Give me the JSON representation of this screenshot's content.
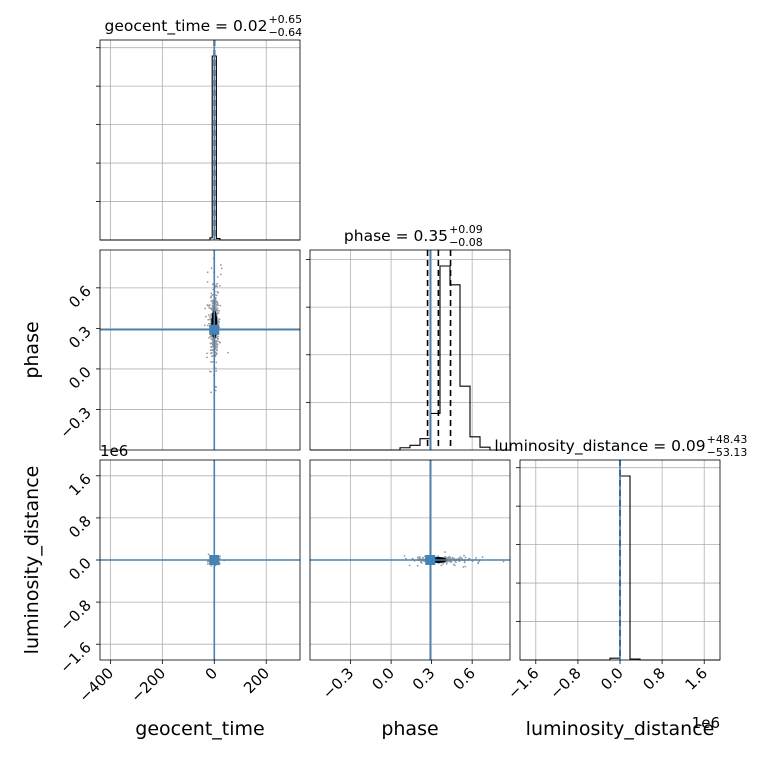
{
  "chart_data": {
    "type": "scatter",
    "subtype": "corner-plot",
    "parameters": [
      "geocent_time",
      "phase",
      "luminosity_distance"
    ],
    "truth_color": "#4682b4",
    "grid": true,
    "titles": [
      {
        "param": "geocent_time",
        "name": "geocent_time",
        "median": "0.02",
        "plus": "+0.65",
        "minus": "−0.64"
      },
      {
        "param": "phase",
        "name": "phase",
        "median": "0.35",
        "plus": "+0.09",
        "minus": "−0.08"
      },
      {
        "param": "luminosity_distance",
        "name": "luminosity_distance",
        "median": "0.09",
        "plus": "+48.43",
        "minus": "−53.13"
      }
    ],
    "axes": {
      "geocent_time": {
        "label": "geocent_time",
        "range": [
          -440,
          330
        ],
        "ticks": [
          -400,
          -200,
          0,
          200
        ],
        "tick_labels": [
          "−400",
          "−200",
          "0",
          "200"
        ],
        "truth": 0
      },
      "phase": {
        "label": "phase",
        "range": [
          -0.6,
          0.88
        ],
        "ticks": [
          -0.3,
          0.0,
          0.3,
          0.6
        ],
        "tick_labels": [
          "−0.3",
          "0.0",
          "0.3",
          "0.6"
        ],
        "truth": 0.29
      },
      "luminosity_distance": {
        "label": "luminosity_distance",
        "offset_label": "1e6",
        "range": [
          -1.9,
          1.9
        ],
        "ticks": [
          -1.6,
          -0.8,
          0.0,
          0.8,
          1.6
        ],
        "tick_labels": [
          "−1.6",
          "−0.8",
          "0.0",
          "0.8",
          "1.6"
        ],
        "truth": 0
      }
    },
    "y_axes": {
      "phase": {
        "range": [
          -0.6,
          0.88
        ],
        "ticks": [
          -0.3,
          0.0,
          0.3,
          0.6
        ],
        "tick_labels": [
          "−0.3",
          "0.0",
          "0.3",
          "0.6"
        ]
      },
      "luminosity_distance": {
        "offset_label": "1e6",
        "range": [
          -1.9,
          1.9
        ],
        "ticks": [
          -1.6,
          -0.8,
          0.0,
          0.8,
          1.6
        ],
        "tick_labels": [
          "−1.6",
          "−0.8",
          "0.0",
          "0.8",
          "1.6"
        ]
      }
    },
    "histograms": [
      {
        "param": "geocent_time",
        "bin_edges": [
          -440,
          -401.5,
          -363,
          -324.5,
          -286,
          -247.5,
          -209,
          -170.5,
          -132,
          -93.5,
          -55,
          -16.5,
          -8,
          0,
          8,
          22,
          60.5,
          99,
          137.5,
          176,
          214.5,
          253,
          291.5,
          330
        ],
        "counts": [
          0,
          0,
          0,
          0,
          0,
          0,
          0,
          0,
          0,
          0,
          0,
          0.012,
          1.0,
          1.0,
          0.008,
          0,
          0,
          0,
          0,
          0,
          0,
          0,
          0
        ],
        "quantiles": [
          -0.62,
          0.02,
          0.67
        ],
        "y_ticks": 5
      },
      {
        "param": "phase",
        "bin_edges": [
          -0.6,
          -0.526,
          -0.452,
          -0.378,
          -0.304,
          -0.23,
          -0.156,
          -0.082,
          -0.008,
          0.066,
          0.14,
          0.214,
          0.288,
          0.362,
          0.436,
          0.51,
          0.584,
          0.658,
          0.732,
          0.806,
          0.88
        ],
        "counts": [
          0,
          0,
          0,
          0,
          0,
          0,
          0,
          0,
          0,
          0.012,
          0.025,
          0.06,
          0.195,
          0.98,
          0.88,
          0.34,
          0.07,
          0.015,
          0,
          0
        ],
        "quantiles": [
          0.27,
          0.35,
          0.44
        ],
        "y_ticks": 4
      },
      {
        "param": "luminosity_distance",
        "bin_edges": [
          -1.9,
          -1.71,
          -1.52,
          -1.33,
          -1.14,
          -0.95,
          -0.76,
          -0.57,
          -0.38,
          -0.19,
          0.0,
          0.19,
          0.38,
          0.57,
          0.76,
          0.95,
          1.14,
          1.33,
          1.52,
          1.71,
          1.9
        ],
        "counts": [
          0,
          0,
          0,
          0,
          0,
          0,
          0,
          0,
          0,
          0.01,
          1.0,
          0.005,
          0,
          0,
          0,
          0,
          0,
          0,
          0,
          0
        ],
        "quantiles": [
          -5e-05,
          1e-07,
          5e-05
        ],
        "y_ticks": 5
      }
    ],
    "scatter_panels": [
      {
        "x": "geocent_time",
        "y": "phase",
        "spread": [
          8,
          0.12
        ],
        "center": [
          0,
          0.33
        ]
      },
      {
        "x": "geocent_time",
        "y": "luminosity_distance",
        "spread": [
          6,
          0.02
        ],
        "center": [
          0,
          0.0
        ]
      },
      {
        "x": "phase",
        "y": "luminosity_distance",
        "spread": [
          0.07,
          0.025
        ],
        "center": [
          0.35,
          0.0
        ]
      }
    ]
  }
}
